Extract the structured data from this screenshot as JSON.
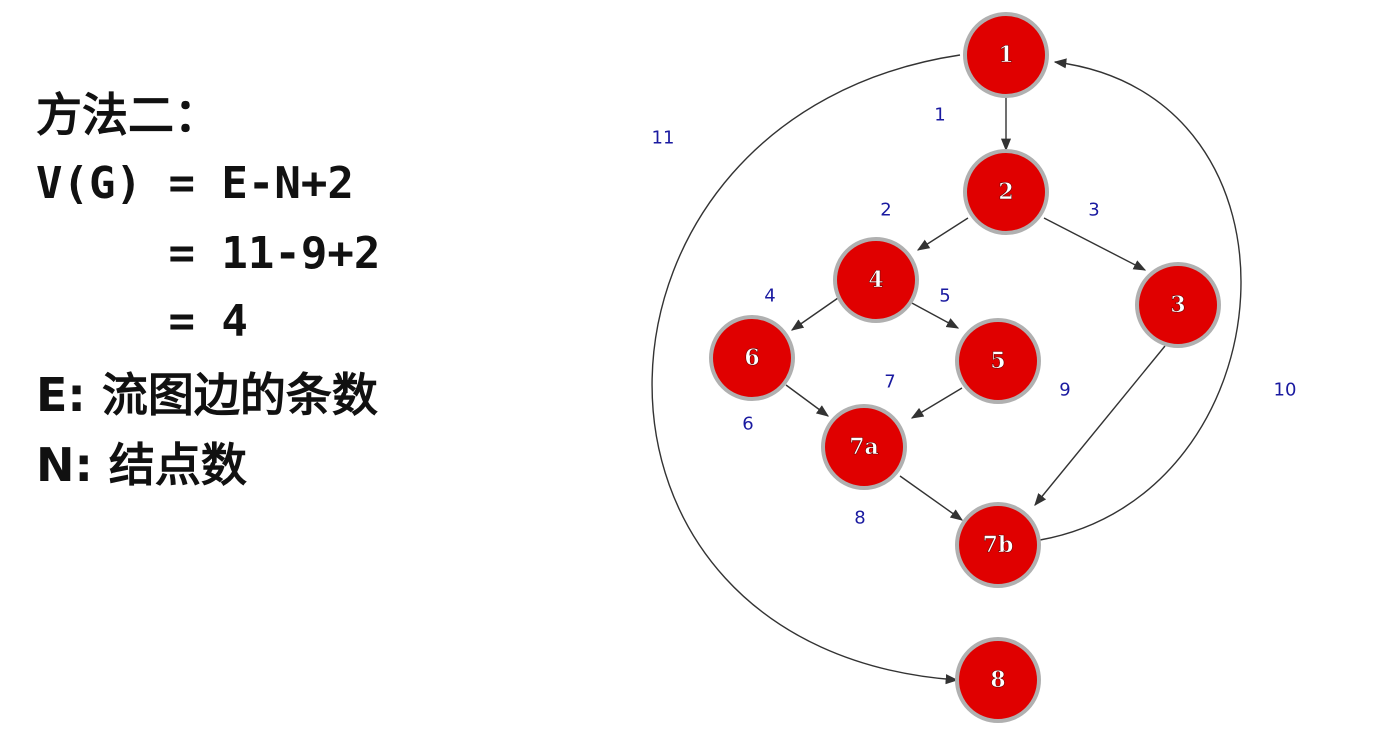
{
  "text": {
    "title": "方法二：",
    "formula_line1": "V(G) = E-N+2",
    "formula_line2": "     = 11-9+2",
    "formula_line3": "     = 4",
    "definition_e": "E: 流图边的条数",
    "definition_n": "N: 结点数"
  },
  "graph": {
    "node_color": "#e00000",
    "edge_label_color": "#1a1aa0",
    "nodes": [
      {
        "id": "n1",
        "label": "1"
      },
      {
        "id": "n2",
        "label": "2"
      },
      {
        "id": "n3",
        "label": "3"
      },
      {
        "id": "n4",
        "label": "4"
      },
      {
        "id": "n5",
        "label": "5"
      },
      {
        "id": "n6",
        "label": "6"
      },
      {
        "id": "n7a",
        "label": "7a"
      },
      {
        "id": "n7b",
        "label": "7b"
      },
      {
        "id": "n8",
        "label": "8"
      }
    ],
    "edges": [
      {
        "label": "1",
        "from": "n1",
        "to": "n2"
      },
      {
        "label": "2",
        "from": "n2",
        "to": "n4"
      },
      {
        "label": "3",
        "from": "n2",
        "to": "n3"
      },
      {
        "label": "4",
        "from": "n4",
        "to": "n6"
      },
      {
        "label": "5",
        "from": "n4",
        "to": "n5"
      },
      {
        "label": "6",
        "from": "n6",
        "to": "n7a"
      },
      {
        "label": "7",
        "from": "n5",
        "to": "n7a"
      },
      {
        "label": "8",
        "from": "n7a",
        "to": "n7b"
      },
      {
        "label": "9",
        "from": "n3",
        "to": "n7b"
      },
      {
        "label": "10",
        "from": "n7b",
        "to": "n1"
      },
      {
        "label": "11",
        "from": "n1",
        "to": "n8"
      }
    ]
  }
}
